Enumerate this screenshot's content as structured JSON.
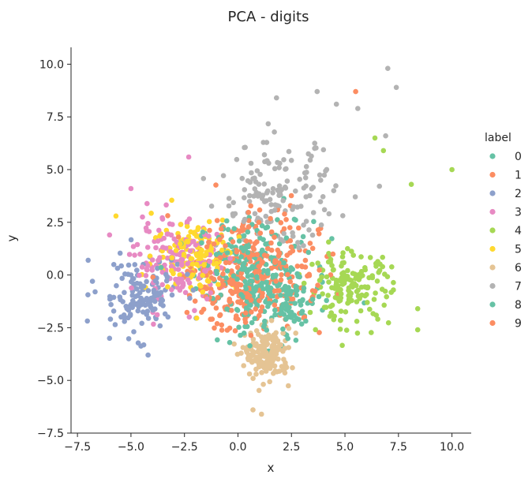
{
  "chart_data": {
    "type": "scatter",
    "title": "PCA - digits",
    "xlabel": "x",
    "ylabel": "y",
    "xlim": [
      -7.8,
      10.9
    ],
    "ylim": [
      -7.5,
      10.8
    ],
    "xticks": [
      -7.5,
      -5.0,
      -2.5,
      0.0,
      2.5,
      5.0,
      7.5,
      10.0
    ],
    "xtick_labels": [
      "−7.5",
      "−5.0",
      "−2.5",
      "0.0",
      "2.5",
      "5.0",
      "7.5",
      "10.0"
    ],
    "yticks": [
      -7.5,
      -5.0,
      -2.5,
      0.0,
      2.5,
      5.0,
      7.5,
      10.0
    ],
    "ytick_labels": [
      "−7.5",
      "−5.0",
      "−2.5",
      "0.0",
      "2.5",
      "5.0",
      "7.5",
      "10.0"
    ],
    "grid": false,
    "legend_title": "label",
    "legend_position": "right",
    "series": [
      {
        "name": "0",
        "color": "#66c2a5",
        "center": [
          0.8,
          0.5
        ],
        "spread": [
          1.8,
          1.4
        ],
        "n": 170
      },
      {
        "name": "1",
        "color": "#fc8d62",
        "center": [
          0.8,
          0.6
        ],
        "spread": [
          2.0,
          1.8
        ],
        "n": 180
      },
      {
        "name": "2",
        "color": "#8da0cb",
        "center": [
          -4.6,
          -1.0
        ],
        "spread": [
          1.3,
          1.2
        ],
        "n": 140
      },
      {
        "name": "3",
        "color": "#e78ac3",
        "center": [
          -2.8,
          0.6
        ],
        "spread": [
          1.3,
          1.3
        ],
        "n": 160
      },
      {
        "name": "4",
        "color": "#a6d854",
        "center": [
          5.2,
          -0.6
        ],
        "spread": [
          1.3,
          1.1
        ],
        "n": 160
      },
      {
        "name": "5",
        "color": "#ffd92f",
        "center": [
          -2.0,
          1.0
        ],
        "spread": [
          1.3,
          1.2
        ],
        "n": 140
      },
      {
        "name": "6",
        "color": "#e5c494",
        "center": [
          1.4,
          -3.8
        ],
        "spread": [
          0.7,
          0.8
        ],
        "n": 170
      },
      {
        "name": "7",
        "color": "#b3b3b3",
        "center": [
          1.8,
          3.8
        ],
        "spread": [
          1.8,
          1.6
        ],
        "n": 150
      },
      {
        "name": "8",
        "color": "#66c2a5",
        "center": [
          1.6,
          -1.4
        ],
        "spread": [
          1.6,
          1.3
        ],
        "n": 170
      },
      {
        "name": "9",
        "color": "#fc8d62",
        "center": [
          0.4,
          -0.4
        ],
        "spread": [
          1.9,
          1.5
        ],
        "n": 170
      }
    ],
    "outliers": [
      {
        "x": 7.0,
        "y": 9.8,
        "color": "#b3b3b3"
      },
      {
        "x": 7.4,
        "y": 8.9,
        "color": "#b3b3b3"
      },
      {
        "x": 5.5,
        "y": 8.7,
        "color": "#fc8d62"
      },
      {
        "x": 3.7,
        "y": 8.7,
        "color": "#b3b3b3"
      },
      {
        "x": 4.6,
        "y": 8.1,
        "color": "#b3b3b3"
      },
      {
        "x": 5.6,
        "y": 7.9,
        "color": "#b3b3b3"
      },
      {
        "x": 1.8,
        "y": 8.4,
        "color": "#b3b3b3"
      },
      {
        "x": 6.9,
        "y": 6.6,
        "color": "#b3b3b3"
      },
      {
        "x": 6.4,
        "y": 6.5,
        "color": "#a6d854"
      },
      {
        "x": 6.8,
        "y": 5.9,
        "color": "#a6d854"
      },
      {
        "x": 10.0,
        "y": 5.0,
        "color": "#a6d854"
      },
      {
        "x": 8.1,
        "y": 4.3,
        "color": "#a6d854"
      },
      {
        "x": 8.4,
        "y": -1.6,
        "color": "#a6d854"
      },
      {
        "x": 8.4,
        "y": -2.6,
        "color": "#a6d854"
      },
      {
        "x": -7.0,
        "y": 0.7,
        "color": "#8da0cb"
      },
      {
        "x": -6.8,
        "y": -0.3,
        "color": "#8da0cb"
      },
      {
        "x": -6.0,
        "y": -3.0,
        "color": "#8da0cb"
      },
      {
        "x": -4.2,
        "y": -3.8,
        "color": "#8da0cb"
      },
      {
        "x": 1.1,
        "y": -6.6,
        "color": "#e5c494"
      },
      {
        "x": 0.7,
        "y": -6.4,
        "color": "#e5c494"
      },
      {
        "x": -2.3,
        "y": 5.6,
        "color": "#e78ac3"
      },
      {
        "x": -5.0,
        "y": 4.1,
        "color": "#e78ac3"
      },
      {
        "x": -6.0,
        "y": 1.9,
        "color": "#e78ac3"
      },
      {
        "x": -5.7,
        "y": 2.8,
        "color": "#ffd92f"
      }
    ]
  }
}
